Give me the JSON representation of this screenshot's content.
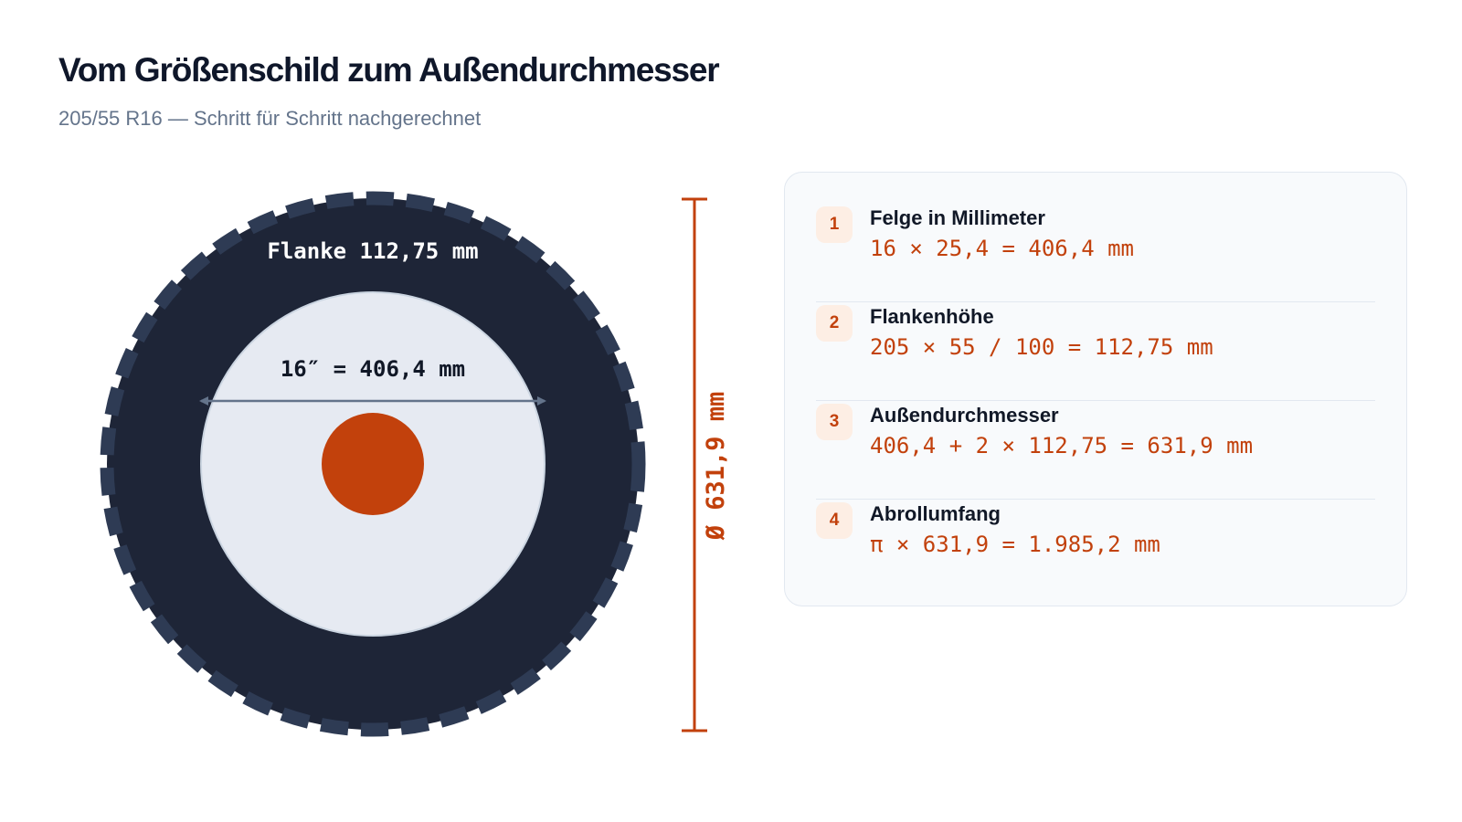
{
  "title": "Vom Größenschild zum Außendurchmesser",
  "subtitle": "205/55 R16 — Schritt für Schritt nachgerechnet",
  "tire": {
    "sidewall_label": "Flanke 112,75 mm",
    "rim_label": "16″ = 406,4 mm",
    "diameter_label": "Ø 631,9 mm"
  },
  "steps": [
    {
      "num": "1",
      "label": "Felge in Millimeter",
      "formula": "16 × 25,4 = 406,4 mm"
    },
    {
      "num": "2",
      "label": "Flankenhöhe",
      "formula": "205 × 55 / 100 = 112,75 mm"
    },
    {
      "num": "3",
      "label": "Außendurchmesser",
      "formula": "406,4 + 2 × 112,75 = 631,9 mm"
    },
    {
      "num": "4",
      "label": "Abrollumfang",
      "formula": "π × 631,9 = 1.985,2 mm"
    }
  ],
  "colors": {
    "tire": "#1e2537",
    "tread": "#2e3b54",
    "rim": "#e6eaf2",
    "hub": "#c2410c",
    "accent": "#c2410c",
    "arrow": "#64748b"
  }
}
